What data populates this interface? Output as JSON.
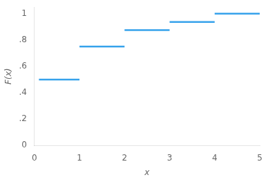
{
  "chart_data": {
    "type": "line",
    "segments": [
      {
        "x_start": 0.1,
        "x_end": 1.0,
        "y": 0.5
      },
      {
        "x_start": 1.0,
        "x_end": 2.0,
        "y": 0.75
      },
      {
        "x_start": 2.0,
        "x_end": 3.0,
        "y": 0.875
      },
      {
        "x_start": 3.0,
        "x_end": 4.0,
        "y": 0.9375
      },
      {
        "x_start": 4.0,
        "x_end": 5.0,
        "y": 1.0
      }
    ],
    "xlabel": "x",
    "ylabel": "F(x)",
    "xlim": [
      0,
      5
    ],
    "ylim": [
      0,
      1.05
    ],
    "xticks": [
      0,
      1,
      2,
      3,
      4,
      5
    ],
    "yticks": [
      0,
      {
        "value": 0.2,
        "label": ".2"
      },
      {
        "value": 0.4,
        "label": ".4"
      },
      {
        "value": 0.6,
        "label": ".6"
      },
      {
        "value": 0.8,
        "label": ".8"
      },
      1
    ],
    "grid": false
  }
}
